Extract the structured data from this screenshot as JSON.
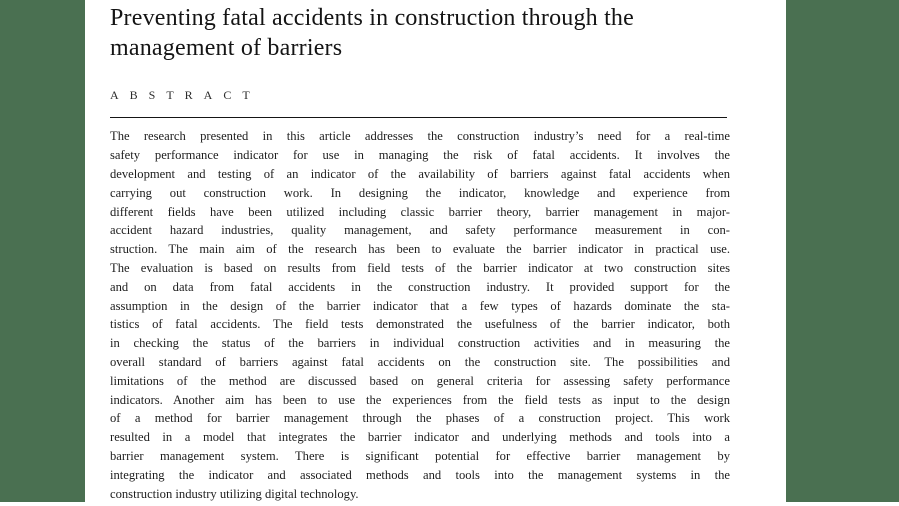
{
  "document": {
    "title": "Preventing fatal accidents in construction through the management of barriers",
    "title_lines": [
      "Preventing fatal accidents in construction through the",
      "management of barriers"
    ],
    "section_label": "ABSTRACT",
    "abstract_lines": [
      "The research presented in this article addresses the construction industry’s need for a real-time",
      "safety performance indicator for use in managing the risk of fatal accidents. It involves the",
      "development and testing of an indicator of the availability of barriers against fatal accidents when",
      "carrying out construction work. In designing the indicator, knowledge and experience from",
      "different fields have been utilized including classic barrier theory, barrier management in major-",
      "accident hazard industries, quality management, and safety performance measurement in con-",
      "struction. The main aim of the research has been to evaluate the barrier indicator in practical use.",
      "The evaluation is based on results from field tests of the barrier indicator at two construction sites",
      "and on data from fatal accidents in the construction industry. It provided support for the",
      "assumption in the design of the barrier indicator that a few types of hazards dominate the sta-",
      "tistics of fatal accidents. The field tests demonstrated the usefulness of the barrier indicator, both",
      "in checking the status of the barriers in individual construction activities and in measuring the",
      "overall standard of barriers against fatal accidents on the construction site. The possibilities and",
      "limitations of the method are discussed based on general criteria for assessing safety performance",
      "indicators. Another aim has been to use the experiences from the field tests as input to the design",
      "of a method for barrier management through the phases of a construction project. This work",
      "resulted in a model that integrates the barrier indicator and underlying methods and tools into a",
      "barrier management system. There is significant potential for effective barrier management by",
      "integrating the indicator and associated methods and tools into the management systems in the",
      "construction industry utilizing digital technology."
    ]
  },
  "colors": {
    "margin_band": "#4a7051",
    "body_text": "#1d1d1d"
  }
}
